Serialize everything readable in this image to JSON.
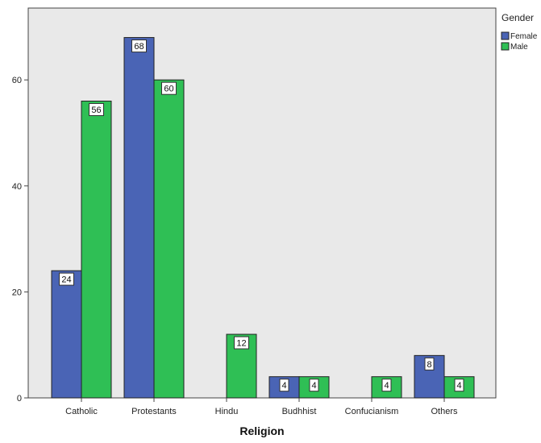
{
  "chart_data": {
    "type": "bar",
    "categories": [
      "Catholic",
      "Protestants",
      "Hindu",
      "Budhhist",
      "Confucianism",
      "Others"
    ],
    "series": [
      {
        "name": "Female",
        "color": "#4a64b5",
        "values": [
          24,
          68,
          null,
          4,
          null,
          8
        ]
      },
      {
        "name": "Male",
        "color": "#2fbf55",
        "values": [
          56,
          60,
          12,
          4,
          4,
          4
        ]
      }
    ],
    "xlabel": "Religion",
    "ylabel": "",
    "ylim": [
      0,
      70
    ],
    "yticks": [
      0,
      20,
      40,
      60
    ],
    "legend_title": "Gender",
    "legend_position": "top-right",
    "plot_background": "#e9e9e9",
    "grid": false,
    "data_labels": true
  }
}
